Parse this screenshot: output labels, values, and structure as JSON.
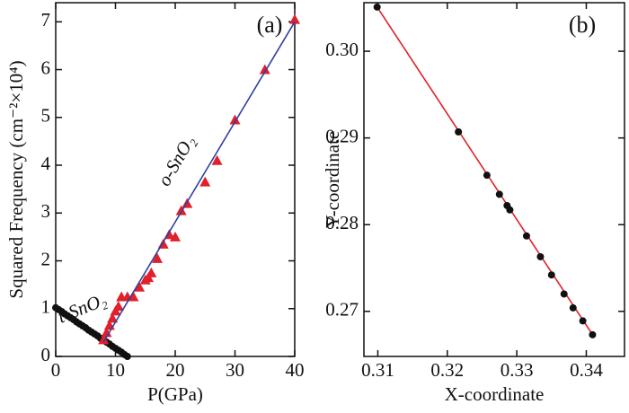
{
  "chart_data": [
    {
      "type": "scatter",
      "xlabel": "P(GPa)",
      "ylabel": "Squared Frequency (cm⁻²×10⁴)",
      "panel_label": "(a)",
      "xlim": [
        0,
        40
      ],
      "xticks": [
        0,
        10,
        20,
        30,
        40
      ],
      "ylim": [
        0,
        7.4
      ],
      "yticks": [
        0,
        1,
        2,
        3,
        4,
        5,
        6,
        7
      ],
      "series": [
        {
          "name": "t-SnO₂",
          "mode": "markers",
          "marker": "circle",
          "color": "#111111",
          "x": [
            0,
            0.5,
            1,
            1.5,
            2,
            2.5,
            3,
            3.5,
            4,
            4.5,
            5,
            5.5,
            6,
            6.5,
            7,
            7.5,
            8,
            8.5,
            9,
            9.5,
            10,
            10.5,
            11,
            11.5,
            12
          ],
          "values": [
            1.02,
            0.98,
            0.94,
            0.89,
            0.85,
            0.81,
            0.77,
            0.72,
            0.68,
            0.64,
            0.6,
            0.55,
            0.51,
            0.47,
            0.43,
            0.38,
            0.34,
            0.3,
            0.26,
            0.21,
            0.17,
            0.13,
            0.09,
            0.04,
            0.0
          ]
        },
        {
          "mode": "line",
          "color": "#111111",
          "x": [
            0,
            12
          ],
          "values": [
            1.02,
            0.0
          ]
        },
        {
          "name": "o-SnO₂",
          "mode": "markers",
          "marker": "triangle",
          "color": "#e0202a",
          "x": [
            8,
            8.5,
            9,
            9.5,
            10,
            10.5,
            11,
            12,
            13,
            14,
            15,
            15.5,
            16,
            17,
            18,
            19,
            20,
            21,
            22,
            25,
            27,
            30,
            35,
            40
          ],
          "values": [
            0.35,
            0.5,
            0.65,
            0.8,
            0.95,
            1.05,
            1.25,
            1.25,
            1.25,
            1.45,
            1.6,
            1.65,
            1.75,
            2.05,
            2.35,
            2.55,
            2.5,
            3.05,
            3.2,
            3.65,
            4.1,
            4.95,
            6.0,
            7.05
          ]
        },
        {
          "mode": "line",
          "color": "#3040a0",
          "x": [
            8,
            40
          ],
          "values": [
            0.3,
            7.0
          ]
        }
      ]
    },
    {
      "type": "scatter",
      "xlabel": "X-coordinate",
      "ylabel": "Y-coordinate",
      "panel_label": "(b)",
      "xlim": [
        0.308,
        0.3455
      ],
      "xticks": [
        0.31,
        0.32,
        0.33,
        0.34
      ],
      "ylim": [
        0.2648,
        0.3056
      ],
      "yticks": [
        0.27,
        0.28,
        0.29,
        {
          "value": 0.3,
          "label": "0.30"
        }
      ],
      "series": [
        {
          "mode": "line",
          "color": "#e0202a",
          "x": [
            0.3099,
            0.3409
          ],
          "values": [
            0.3051,
            0.2673
          ]
        },
        {
          "mode": "markers",
          "marker": "circle",
          "color": "#111111",
          "x": [
            0.3099,
            0.3216,
            0.3257,
            0.3275,
            0.3286,
            0.329,
            0.3314,
            0.3334,
            0.335,
            0.3368,
            0.3381,
            0.3395,
            0.3409
          ],
          "values": [
            0.3051,
            0.2907,
            0.2857,
            0.2835,
            0.2822,
            0.2817,
            0.2787,
            0.2763,
            0.2742,
            0.272,
            0.2704,
            0.2689,
            0.2673
          ]
        }
      ]
    }
  ]
}
